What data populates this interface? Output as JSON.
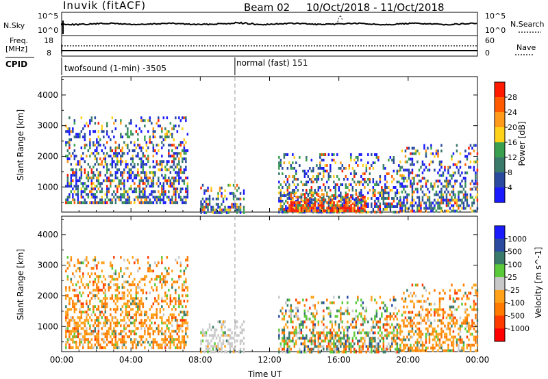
{
  "header": {
    "station": "Inuvik (fitACF)",
    "beam": "Beam 02",
    "date_range": "10/Oct/2018 - 11/Oct/2018"
  },
  "sky_panel": {
    "left_label": "N.Sky",
    "left_top_tick": "10^5",
    "left_bottom_tick": "10^0",
    "right_top_tick": "10^5",
    "right_bottom_tick": "10^0",
    "right_label": "N.Search"
  },
  "freq_panel": {
    "label_line1": "Freq.",
    "label_line2": "[MHz]",
    "left_top_tick": "18",
    "left_bottom_tick": "8",
    "right_top_tick": "60",
    "right_bottom_tick": "0",
    "right_label": "Nave"
  },
  "cpid": {
    "label": "CPID",
    "mode1": "twofsound (1-min) -3505",
    "mode2": "normal (fast) 151"
  },
  "colors": {
    "power_scale": [
      "#1a1aff",
      "#2a4aa0",
      "#3a7a6a",
      "#3aa050",
      "#ffd21a",
      "#ff9a1a",
      "#ff5a00",
      "#ff1a00"
    ],
    "velocity_scale": [
      "#1a1aff",
      "#2a4aa0",
      "#3a7a6a",
      "#5aca3a",
      "#c8c8c8",
      "#ffa21a",
      "#ff7a00",
      "#ff3a00",
      "#ff0000"
    ],
    "gray": "#bdbdbd"
  },
  "chart_data": [
    {
      "type": "heatmap",
      "title": "Power",
      "ylabel": "Slant Range [km]",
      "xlabel": "Time UT",
      "ylim": [
        180,
        4600
      ],
      "yticks": [
        1000,
        2000,
        3000,
        4000
      ],
      "xticks": [
        "00:00",
        "04:00",
        "08:00",
        "12:00",
        "16:00",
        "20:00",
        "00:00"
      ],
      "xlim_hours": [
        0,
        24
      ],
      "colorbar": {
        "label": "Power [dB]",
        "ticks": [
          "4",
          "8",
          "12",
          "16",
          "20",
          "24",
          "28"
        ],
        "range": [
          0,
          30
        ]
      },
      "mode_change_hour": 10,
      "regions": [
        {
          "t": [
            0.2,
            7.3
          ],
          "r": [
            500,
            3300
          ],
          "level": "mixed"
        },
        {
          "t": [
            8.0,
            10.5
          ],
          "r": [
            200,
            1100
          ],
          "level": "mixed"
        },
        {
          "t": [
            12.5,
            19.5
          ],
          "r": [
            200,
            2100
          ],
          "level": "mixed"
        },
        {
          "t": [
            13.0,
            17.5
          ],
          "r": [
            200,
            800
          ],
          "level": "strong"
        },
        {
          "t": [
            19.5,
            24
          ],
          "r": [
            200,
            2400
          ],
          "level": "mixed"
        }
      ]
    },
    {
      "type": "heatmap",
      "title": "Velocity",
      "ylabel": "Slant Range [km]",
      "xlabel": "Time UT",
      "ylim": [
        180,
        4600
      ],
      "yticks": [
        1000,
        2000,
        3000,
        4000
      ],
      "xticks": [
        "00:00",
        "04:00",
        "08:00",
        "12:00",
        "16:00",
        "20:00",
        "00:00"
      ],
      "xlim_hours": [
        0,
        24
      ],
      "colorbar": {
        "label": "Velocity [m s^-1]",
        "ticks": [
          "1000",
          "500",
          "100",
          "25",
          "-25",
          "-100",
          "-500",
          "-1000"
        ]
      },
      "mode_change_hour": 10,
      "regions": [
        {
          "t": [
            0.2,
            7.3
          ],
          "r": [
            300,
            3300
          ],
          "level": "away"
        },
        {
          "t": [
            8.0,
            10.5
          ],
          "r": [
            200,
            1200
          ],
          "level": "ground"
        },
        {
          "t": [
            12.5,
            19.5
          ],
          "r": [
            200,
            2000
          ],
          "level": "mixed"
        },
        {
          "t": [
            19.5,
            24
          ],
          "r": [
            200,
            2400
          ],
          "level": "away"
        }
      ]
    }
  ]
}
